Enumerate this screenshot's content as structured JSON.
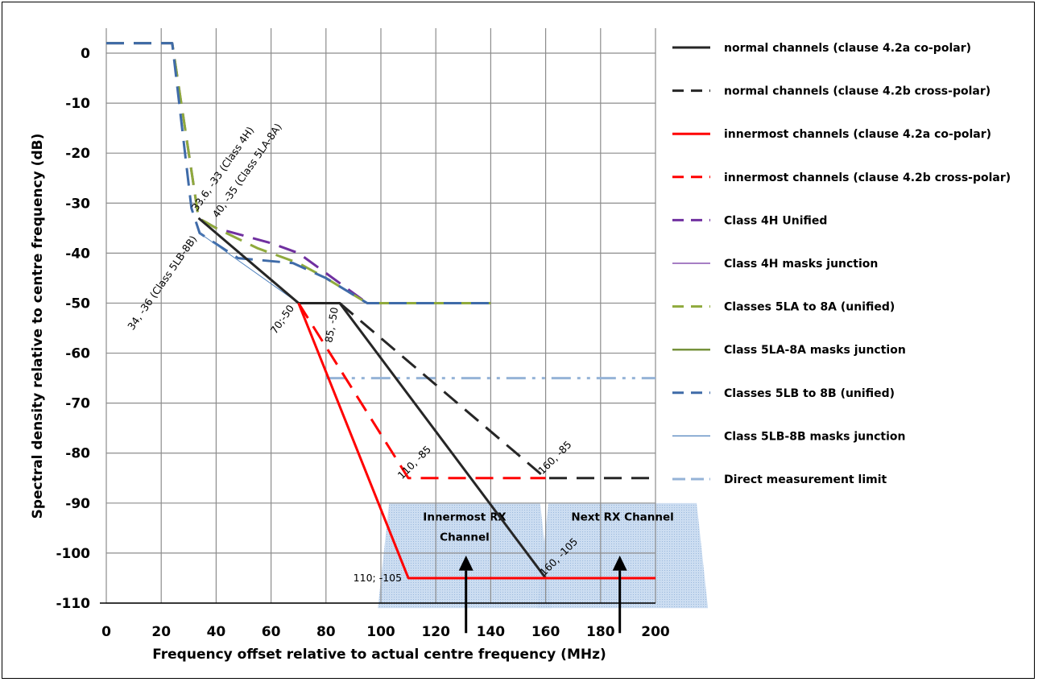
{
  "chart_data": {
    "type": "line",
    "xlabel": "Frequency offset relative to actual centre frequency (MHz)",
    "ylabel": "Spectral density relative to centre frequency (dB)",
    "xlim": [
      0,
      200
    ],
    "ylim": [
      -110,
      5
    ],
    "xticks": [
      0,
      20,
      40,
      60,
      80,
      100,
      120,
      140,
      160,
      180,
      200
    ],
    "yticks": [
      0,
      -10,
      -20,
      -30,
      -40,
      -50,
      -60,
      -70,
      -80,
      -90,
      -100,
      -110
    ],
    "grid": true,
    "legend_position": "right",
    "series": [
      {
        "name": "normal channels (clause 4.2a co-polar)",
        "color": "#262626",
        "style": "solid",
        "width": 3,
        "points": [
          [
            33.6,
            -33
          ],
          [
            70,
            -50
          ],
          [
            85,
            -50
          ],
          [
            160,
            -105
          ],
          [
            200,
            -105
          ]
        ]
      },
      {
        "name": "normal channels (clause 4.2b cross-polar)",
        "color": "#262626",
        "style": "dash",
        "width": 3,
        "points": [
          [
            85,
            -50
          ],
          [
            160,
            -85
          ],
          [
            200,
            -85
          ]
        ]
      },
      {
        "name": "innermost channels (clause 4.2a co-polar)",
        "color": "#ff0000",
        "style": "solid",
        "width": 3,
        "points": [
          [
            70,
            -50
          ],
          [
            110,
            -105
          ],
          [
            200,
            -105
          ]
        ]
      },
      {
        "name": "innermost channels (clause 4.2b cross-polar)",
        "color": "#ff0000",
        "style": "dash",
        "width": 3,
        "points": [
          [
            70,
            -50
          ],
          [
            110,
            -85
          ],
          [
            160,
            -85
          ]
        ]
      },
      {
        "name": "Class 4H Unified",
        "color": "#7030a0",
        "style": "dash",
        "width": 3,
        "points": [
          [
            0,
            2
          ],
          [
            24,
            2
          ],
          [
            33.6,
            -33
          ],
          [
            40,
            -35
          ],
          [
            60,
            -38
          ],
          [
            70,
            -40
          ],
          [
            80,
            -44
          ],
          [
            95,
            -50
          ],
          [
            140,
            -50
          ]
        ]
      },
      {
        "name": "Class 4H masks junction",
        "color": "#7030a0",
        "style": "solid",
        "width": 1,
        "points": [
          [
            33.6,
            -33
          ],
          [
            70,
            -50
          ]
        ]
      },
      {
        "name": "Classes 5LA to 8A (unified)",
        "color": "#8faa3c",
        "style": "dash",
        "width": 3,
        "points": [
          [
            0,
            2
          ],
          [
            24,
            2
          ],
          [
            33.6,
            -33
          ],
          [
            40,
            -35
          ],
          [
            55,
            -39
          ],
          [
            70,
            -42
          ],
          [
            80,
            -45
          ],
          [
            95,
            -50
          ],
          [
            140,
            -50
          ]
        ]
      },
      {
        "name": "Class 5LA-8A masks junction",
        "color": "#76923c",
        "style": "solid",
        "width": 2,
        "points": [
          [
            33.6,
            -33
          ],
          [
            70,
            -50
          ],
          [
            85,
            -50
          ]
        ]
      },
      {
        "name": "Classes 5LB to 8B (unified)",
        "color": "#3f6ba8",
        "style": "dash",
        "width": 3,
        "points": [
          [
            0,
            2
          ],
          [
            24,
            2
          ],
          [
            31,
            -31
          ],
          [
            34,
            -36
          ],
          [
            48,
            -41
          ],
          [
            68,
            -42
          ],
          [
            72,
            -43
          ],
          [
            80,
            -45
          ],
          [
            95,
            -50
          ],
          [
            140,
            -50
          ]
        ]
      },
      {
        "name": "Class 5LB-8B masks junction",
        "color": "#4f81bd",
        "style": "solid",
        "width": 1,
        "points": [
          [
            34,
            -36
          ],
          [
            70,
            -50
          ],
          [
            85,
            -50
          ]
        ]
      },
      {
        "name": "Direct measurement limit",
        "color": "#95b3d7",
        "style": "dashdotdot",
        "width": 3,
        "points": [
          [
            80,
            -65
          ],
          [
            200,
            -65
          ]
        ]
      }
    ],
    "point_annotations": [
      {
        "text": "33.6, -33 (Class 4H)",
        "x": 33.6,
        "y": -33
      },
      {
        "text": "40, -35 (Class 5LA-8A)",
        "x": 40,
        "y": -35
      },
      {
        "text": "34, -36 (Class 5LB-8B)",
        "x": 34,
        "y": -36
      },
      {
        "text": "70;-50",
        "x": 70,
        "y": -50
      },
      {
        "text": "85, -50",
        "x": 85,
        "y": -50
      },
      {
        "text": "110, -85",
        "x": 110,
        "y": -85
      },
      {
        "text": "160, -85",
        "x": 160,
        "y": -85
      },
      {
        "text": "160, -105",
        "x": 160,
        "y": -105
      },
      {
        "text": "110; -105",
        "x": 110,
        "y": -105
      }
    ],
    "channel_regions": [
      {
        "label_line1": "Innermost RX",
        "label_line2": "Channel",
        "x_range": [
          103,
          158
        ],
        "arrow_x": 131
      },
      {
        "label_line1": "Next RX Channel",
        "label_line2": "",
        "x_range": [
          161,
          215
        ],
        "arrow_x": 187
      }
    ]
  }
}
